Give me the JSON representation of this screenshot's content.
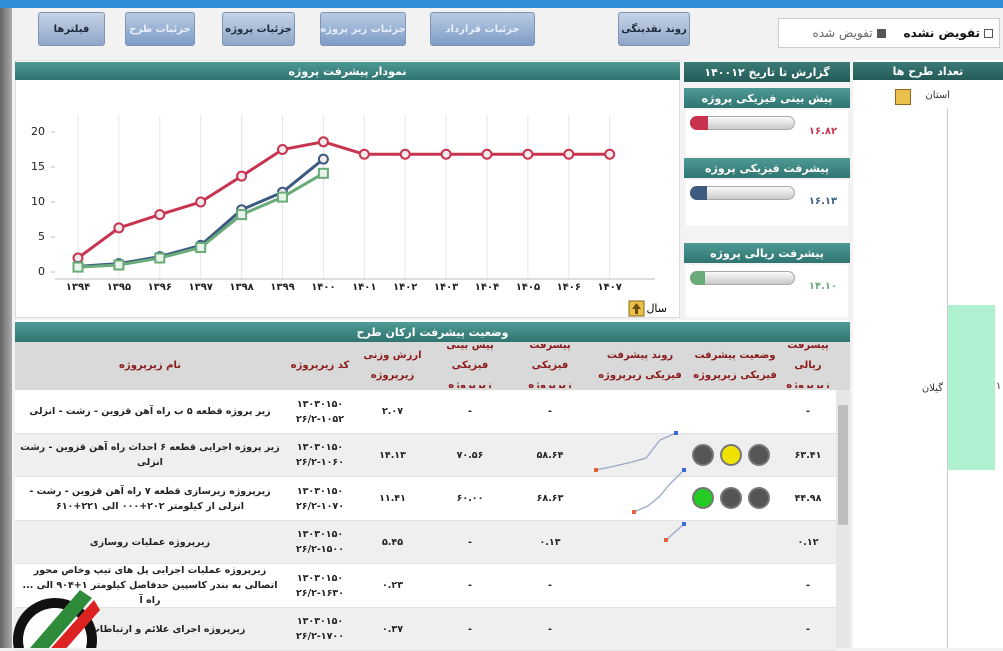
{
  "toolbar": {
    "buttons": [
      "فیلترها",
      "جزئیات طرح",
      "جزئیات پروژه",
      "جزئیات زیر پروژه",
      "جزئیات قرارداد",
      "روند نقدینگی"
    ],
    "options": [
      "تفویض نشده",
      "تفویض شده"
    ]
  },
  "chart_data": {
    "type": "line",
    "title": "نمودار پیشرفت پروژه",
    "xlabel": "سال",
    "categories": [
      "۱۳۹۴",
      "۱۳۹۵",
      "۱۳۹۶",
      "۱۳۹۷",
      "۱۳۹۸",
      "۱۳۹۹",
      "۱۴۰۰",
      "۱۴۰۱",
      "۱۴۰۲",
      "۱۴۰۳",
      "۱۴۰۴",
      "۱۴۰۵",
      "۱۴۰۶",
      "۱۴۰۷"
    ],
    "series": [
      {
        "color": "#c8334f",
        "marker": "circle",
        "values": [
          2.0,
          6.3,
          8.2,
          10.0,
          13.7,
          17.5,
          18.6,
          16.82,
          16.82,
          16.82,
          16.82,
          16.82,
          16.82,
          16.82
        ]
      },
      {
        "color": "#3d5a80",
        "marker": "circle",
        "values": [
          0.8,
          1.2,
          2.2,
          3.8,
          8.9,
          11.4,
          16.13,
          null,
          null,
          null,
          null,
          null,
          null,
          null
        ]
      },
      {
        "color": "#6aab7a",
        "marker": "square",
        "values": [
          0.7,
          1.0,
          2.0,
          3.5,
          8.2,
          10.7,
          14.1,
          null,
          null,
          null,
          null,
          null,
          null,
          null
        ]
      }
    ],
    "ylim": [
      -1,
      21
    ],
    "yticks": [
      0,
      5,
      10,
      15,
      20
    ],
    "grid": "x"
  },
  "report": {
    "title": "گزارش تا تاریخ ۱۴۰۰۱۲",
    "gauges": [
      {
        "title": "پیش بینی فیزیکی پروژه",
        "value": 16.82,
        "label": "۱۶.۸۲",
        "color": "#c8334f"
      },
      {
        "title": "پیشرفت فیزیکی پروژه",
        "value": 16.13,
        "label": "۱۶.۱۳",
        "color": "#3d5a80"
      },
      {
        "title": "پیشرفت ریالی پروژه",
        "value": 14.1,
        "label": "۱۴.۱۰",
        "color": "#6aab7a"
      }
    ]
  },
  "sidebar": {
    "title": "تعداد طرح ها",
    "filter": "استان",
    "province": "گیلان",
    "count": "۱"
  },
  "table": {
    "title": "وضعیت پیشرفت ارکان طرح",
    "columns": [
      "پیشرفت ریالی زیرپروژه",
      "وضعیت پیشرفت فیزیکی زیرپروژه",
      "روند پیشرفت فیزیکی زیرپروژه",
      "پیشرفت فیزیکی زیرپروژه",
      "پیش بینی فیزیکی زیرپروژه",
      "ارزش وزنی زیرپروژه",
      "کد زیرپروژه",
      "نام زیرپروژه"
    ],
    "rows": [
      {
        "name": "زیر پروژه قطعه ۵ ب راه آهن قزوین - رشت - انزلی",
        "code": [
          "۱۳۰۳۰۱۵۰",
          "۲۶/۲-۱۰۵۲"
        ],
        "weight": "۲.۰۷",
        "forecast": "-",
        "physical": "-",
        "rial": "-"
      },
      {
        "name": "زیر پروژه اجرایی قطعه ۶ احداث راه آهن قزوین - رشت انزلی",
        "code": [
          "۱۳۰۳۰۱۵۰",
          "۲۶/۲-۱۰۶۰"
        ],
        "weight": "۱۴.۱۳",
        "forecast": "۷۰.۵۶",
        "physical": "۵۸.۶۴",
        "rial": "۶۳.۴۱"
      },
      {
        "name": "زیرپروژه زیرسازی قطعه ۷ راه آهن قزوین - رشت - انزلی از کیلومتر ۲۰۲+۰۰۰ الی ۲۲۱+۶۱۰",
        "code": [
          "۱۳۰۳۰۱۵۰",
          "۲۶/۲-۱۰۷۰"
        ],
        "weight": "۱۱.۴۱",
        "forecast": "۶۰.۰۰",
        "physical": "۶۸.۶۳",
        "rial": "۴۴.۹۸"
      },
      {
        "name": "زیرپروژه عملیات روسازی",
        "code": [
          "۱۳۰۳۰۱۵۰",
          "۲۶/۲-۱۵۰۰"
        ],
        "weight": "۵.۴۵",
        "forecast": "-",
        "physical": "۰.۱۳",
        "rial": "۰.۱۲"
      },
      {
        "name": "زیرپروژه عملیات اجرایی پل های تیپ وخاص محور اتصالی به بندر کاسپین حدفاصل کیلومتر ۱+۹۰۴ الی ... راه آ",
        "code": [
          "۱۳۰۳۰۱۵۰",
          "۲۶/۲-۱۶۳۰"
        ],
        "weight": "۰.۲۳",
        "forecast": "-",
        "physical": "-",
        "rial": "-"
      },
      {
        "name": "زیرپروژه اجرای علائم و ارتباطات متحرک",
        "code": [
          "۱۳۰۳۰۱۵۰",
          "۲۶/۲-۱۷۰۰"
        ],
        "weight": "۰.۳۷",
        "forecast": "-",
        "physical": "-",
        "rial": "-"
      }
    ]
  }
}
